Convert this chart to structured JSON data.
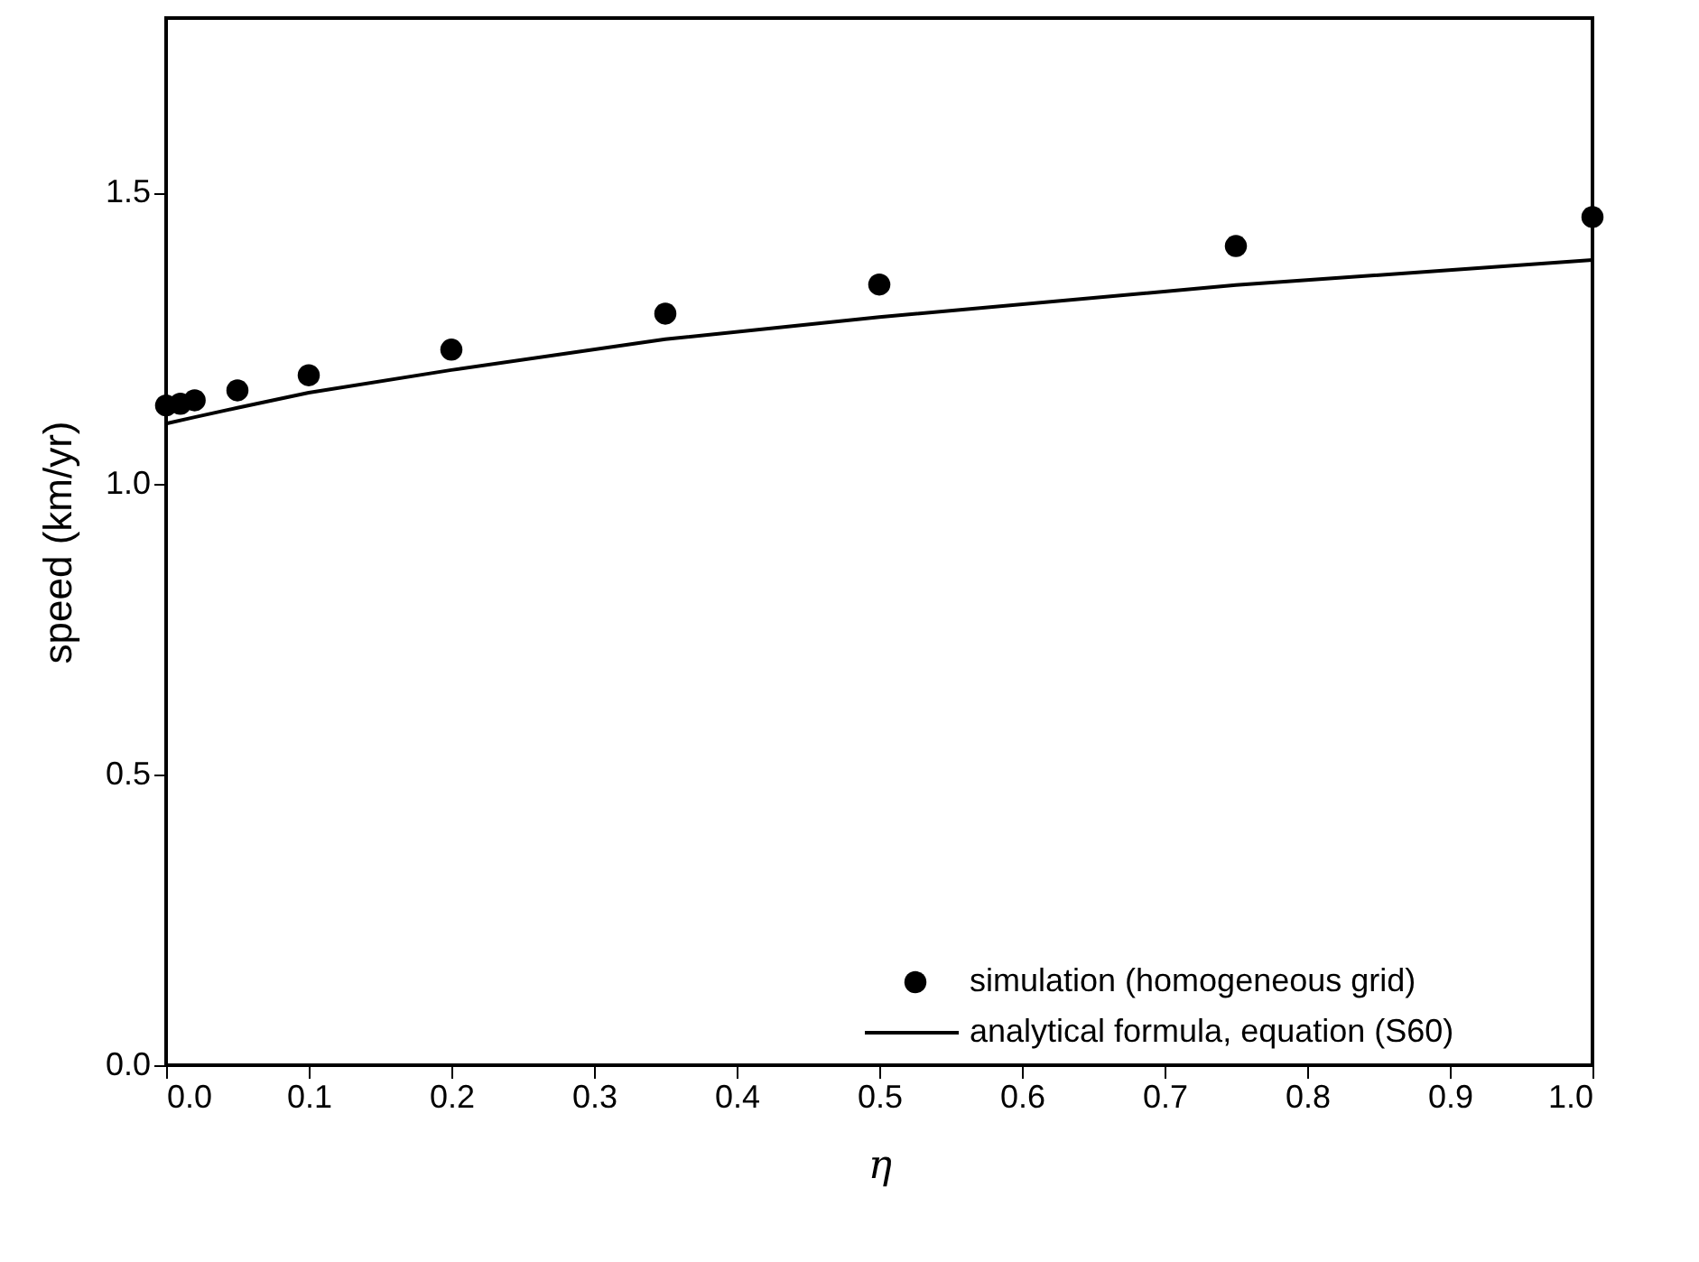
{
  "chart_data": {
    "type": "scatter",
    "xlabel": "η",
    "ylabel": "speed (km/yr)",
    "xlim": [
      0,
      1
    ],
    "xticks": [
      {
        "value": 0,
        "label": "0.0"
      },
      0.1,
      0.2,
      0.3,
      0.4,
      0.5,
      0.6,
      0.7,
      0.8,
      0.9,
      {
        "value": 1,
        "label": "1.0"
      }
    ],
    "ylim": [
      0,
      1.8
    ],
    "yticks": [
      {
        "value": 0,
        "label": "0.0"
      },
      0.5,
      {
        "value": 1,
        "label": "1.0"
      },
      1.5
    ],
    "grid": false,
    "legend": "bottom right",
    "series": [
      {
        "name": "simulation (homogeneous grid)",
        "marker": "circle",
        "color": "#000000",
        "x": [
          0,
          0.01,
          0.02,
          0.05,
          0.1,
          0.2,
          0.35,
          0.5,
          0.75,
          1.0
        ],
        "values": [
          1.134,
          1.137,
          1.143,
          1.16,
          1.186,
          1.23,
          1.292,
          1.342,
          1.408,
          1.458
        ]
      },
      {
        "name": "analytical formula, equation (S60)",
        "type": "line",
        "line_style": "solid",
        "color": "#000000",
        "x": [
          0,
          0.02,
          0.05,
          0.1,
          0.2,
          0.35,
          0.5,
          0.75,
          1.0
        ],
        "values": [
          1.103,
          1.114,
          1.13,
          1.156,
          1.195,
          1.248,
          1.286,
          1.341,
          1.384
        ]
      }
    ]
  }
}
